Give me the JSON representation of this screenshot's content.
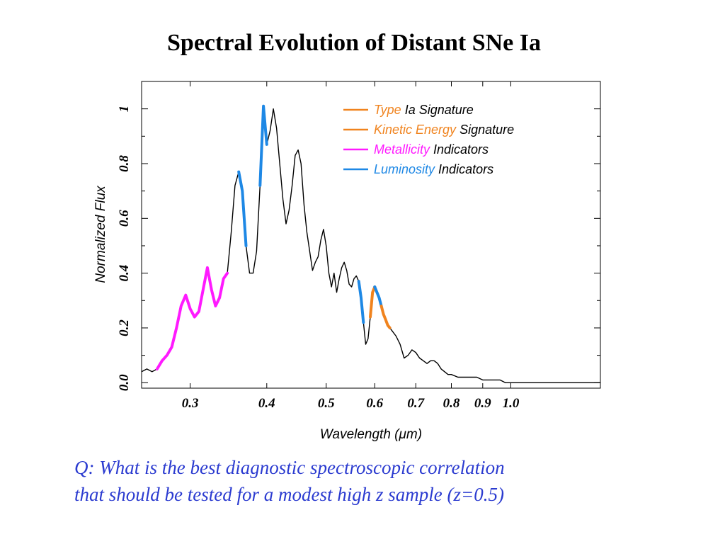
{
  "slide": {
    "title": "Spectral Evolution of Distant SNe Ia",
    "question_lines": [
      "Q: What is the best diagnostic spectroscopic correlation",
      "that should be tested for a modest high z sample (z=0.5)"
    ]
  },
  "chart_data": {
    "type": "line",
    "title": "",
    "xlabel": "Wavelength (μm)",
    "ylabel": "Normalized Flux",
    "x_scale": "log",
    "xlim": [
      0.25,
      1.4
    ],
    "ylim": [
      -0.02,
      1.1
    ],
    "xticks": [
      0.3,
      0.4,
      0.5,
      0.6,
      0.7,
      0.8,
      0.9,
      1.0
    ],
    "xtick_labels": [
      "0.3",
      "0.4",
      "0.5",
      "0.6",
      "0.7",
      "0.8",
      "0.9",
      "1.0"
    ],
    "yticks": [
      0.0,
      0.2,
      0.4,
      0.6,
      0.8,
      1.0
    ],
    "ytick_labels": [
      "0.0",
      "0.2",
      "0.4",
      "0.6",
      "0.8",
      "1"
    ],
    "legend_position": "top-right",
    "colors": {
      "spectrum": "#000000",
      "type_ia": "#f0831e",
      "kinetic": "#f0831e",
      "metallicity": "#ff1aff",
      "luminosity": "#1e88e5"
    },
    "legend": [
      {
        "color": "#f0831e",
        "parts": [
          {
            "text": "Type",
            "color": "#f0831e"
          },
          {
            "text": " Ia  Signature",
            "color": "#000000"
          }
        ]
      },
      {
        "color": "#f0831e",
        "parts": [
          {
            "text": "Kinetic  Energy",
            "color": "#f0831e"
          },
          {
            "text": " Signature",
            "color": "#000000"
          }
        ]
      },
      {
        "color": "#ff1aff",
        "parts": [
          {
            "text": "Metallicity",
            "color": "#ff1aff"
          },
          {
            "text": " Indicators",
            "color": "#000000"
          }
        ]
      },
      {
        "color": "#1e88e5",
        "parts": [
          {
            "text": "Luminosity",
            "color": "#1e88e5"
          },
          {
            "text": " Indicators",
            "color": "#000000"
          }
        ]
      }
    ],
    "spectrum": {
      "x": [
        0.25,
        0.255,
        0.26,
        0.265,
        0.27,
        0.275,
        0.28,
        0.285,
        0.29,
        0.295,
        0.3,
        0.305,
        0.31,
        0.315,
        0.32,
        0.325,
        0.33,
        0.335,
        0.34,
        0.345,
        0.35,
        0.355,
        0.36,
        0.365,
        0.37,
        0.375,
        0.38,
        0.385,
        0.39,
        0.395,
        0.4,
        0.405,
        0.41,
        0.415,
        0.42,
        0.425,
        0.43,
        0.435,
        0.44,
        0.445,
        0.45,
        0.455,
        0.46,
        0.465,
        0.47,
        0.475,
        0.48,
        0.485,
        0.49,
        0.495,
        0.5,
        0.505,
        0.51,
        0.515,
        0.52,
        0.525,
        0.53,
        0.535,
        0.54,
        0.545,
        0.55,
        0.555,
        0.56,
        0.565,
        0.57,
        0.575,
        0.58,
        0.585,
        0.59,
        0.595,
        0.6,
        0.605,
        0.61,
        0.615,
        0.62,
        0.625,
        0.63,
        0.635,
        0.64,
        0.65,
        0.66,
        0.67,
        0.68,
        0.69,
        0.7,
        0.71,
        0.72,
        0.73,
        0.74,
        0.75,
        0.76,
        0.77,
        0.78,
        0.79,
        0.8,
        0.82,
        0.84,
        0.86,
        0.88,
        0.9,
        0.92,
        0.94,
        0.96,
        0.98,
        1.0,
        1.05,
        1.1,
        1.2,
        1.3,
        1.4
      ],
      "y": [
        0.04,
        0.05,
        0.04,
        0.05,
        0.08,
        0.1,
        0.13,
        0.2,
        0.28,
        0.32,
        0.27,
        0.24,
        0.26,
        0.34,
        0.42,
        0.34,
        0.28,
        0.31,
        0.38,
        0.4,
        0.55,
        0.72,
        0.77,
        0.7,
        0.5,
        0.4,
        0.4,
        0.48,
        0.72,
        1.01,
        0.87,
        0.92,
        1.0,
        0.93,
        0.8,
        0.67,
        0.58,
        0.63,
        0.72,
        0.83,
        0.85,
        0.8,
        0.65,
        0.55,
        0.48,
        0.41,
        0.44,
        0.46,
        0.52,
        0.56,
        0.5,
        0.4,
        0.35,
        0.4,
        0.33,
        0.38,
        0.42,
        0.44,
        0.41,
        0.36,
        0.35,
        0.38,
        0.39,
        0.37,
        0.31,
        0.22,
        0.14,
        0.16,
        0.24,
        0.33,
        0.35,
        0.33,
        0.31,
        0.28,
        0.25,
        0.23,
        0.21,
        0.2,
        0.19,
        0.17,
        0.14,
        0.09,
        0.1,
        0.12,
        0.11,
        0.09,
        0.08,
        0.07,
        0.08,
        0.08,
        0.07,
        0.05,
        0.04,
        0.03,
        0.03,
        0.02,
        0.02,
        0.02,
        0.02,
        0.01,
        0.01,
        0.01,
        0.01,
        0.0,
        0.0,
        0.0,
        0.0,
        0.0,
        0.0,
        0.0
      ]
    },
    "highlights": [
      {
        "name": "Metallicity",
        "color": "#ff1aff",
        "x_range": [
          0.265,
          0.345
        ]
      },
      {
        "name": "Luminosity",
        "color": "#1e88e5",
        "x_range": [
          0.36,
          0.37
        ]
      },
      {
        "name": "Luminosity",
        "color": "#1e88e5",
        "x_range": [
          0.39,
          0.4
        ]
      },
      {
        "name": "Luminosity",
        "color": "#1e88e5",
        "x_range": [
          0.565,
          0.575
        ]
      },
      {
        "name": "Type Ia",
        "color": "#f0831e",
        "x_range": [
          0.59,
          0.6
        ]
      },
      {
        "name": "Luminosity",
        "color": "#1e88e5",
        "x_range": [
          0.6,
          0.615
        ]
      },
      {
        "name": "Kinetic Energy",
        "color": "#f0831e",
        "x_range": [
          0.615,
          0.635
        ]
      }
    ]
  }
}
